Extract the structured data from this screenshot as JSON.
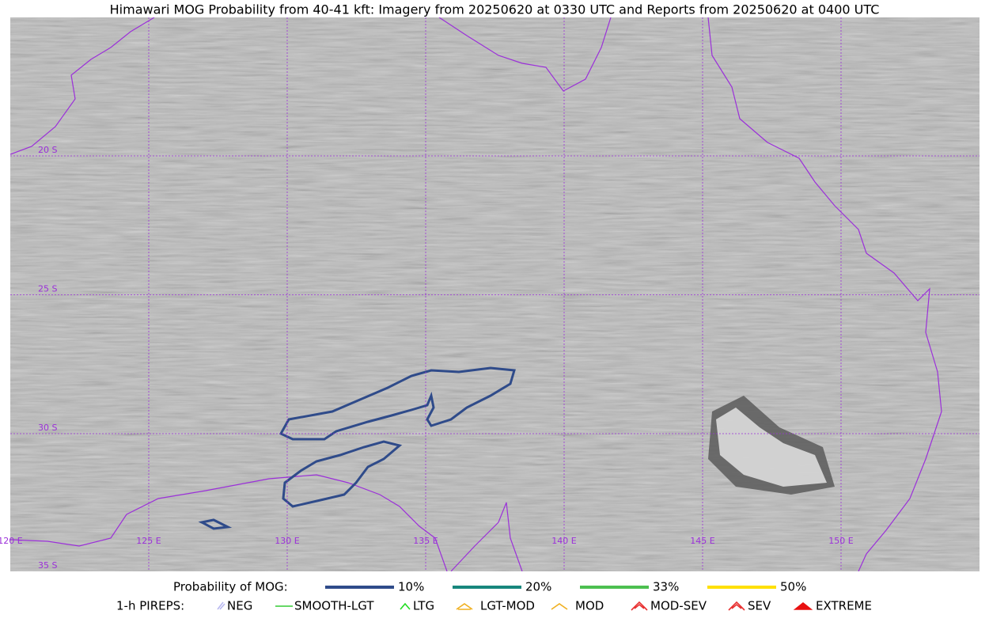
{
  "title": "Himawari MOG Probability from 40-41 kft: Imagery from 20250620 at 0330 UTC and Reports from 20250620 at 0400 UTC",
  "map": {
    "lat_labels": [
      "20 S",
      "25 S",
      "30 S",
      "35 S"
    ],
    "lon_labels": [
      "120 E",
      "125 E",
      "130 E",
      "135 E",
      "140 E",
      "145 E",
      "150 E"
    ]
  },
  "legend": {
    "mog_label": "Probability of MOG:",
    "mog_items": [
      {
        "name": "10%",
        "color": "#2f4b8a"
      },
      {
        "name": "20%",
        "color": "#17877d"
      },
      {
        "name": "33%",
        "color": "#4cc050"
      },
      {
        "name": "50%",
        "color": "#ffe000"
      }
    ],
    "pirep_label": "1-h PIREPS:",
    "pirep_items": [
      {
        "name": "NEG",
        "color": "#b8b8f0"
      },
      {
        "name": "SMOOTH-LGT",
        "color": "#33cc33"
      },
      {
        "name": "LTG",
        "color": "#22dd22"
      },
      {
        "name": "LGT-MOD",
        "color": "#f0b020"
      },
      {
        "name": "MOD",
        "color": "#f0b020"
      },
      {
        "name": "MOD-SEV",
        "color": "#e83030"
      },
      {
        "name": "SEV",
        "color": "#e83030"
      },
      {
        "name": "EXTREME",
        "color": "#e81010"
      }
    ]
  }
}
